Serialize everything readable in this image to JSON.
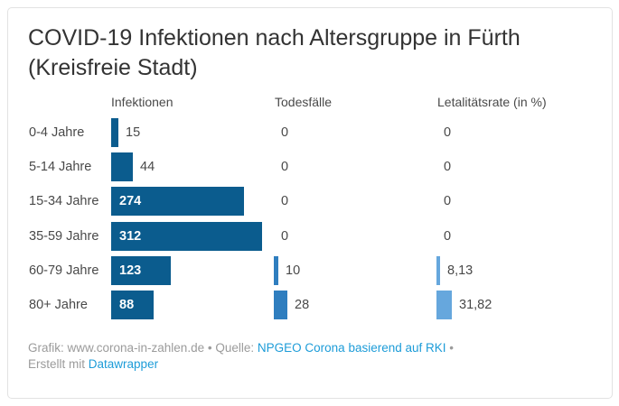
{
  "title": "COVID-19 Infektionen nach Altersgruppe in Fürth (Kreisfreie Stadt)",
  "chart_data": {
    "type": "bar",
    "subtype": "horizontal-split-bars-table",
    "title": "COVID-19 Infektionen nach Altersgruppe in Fürth (Kreisfreie Stadt)",
    "categories": [
      "0-4 Jahre",
      "5-14 Jahre",
      "15-34 Jahre",
      "35-59 Jahre",
      "60-79 Jahre",
      "80+ Jahre"
    ],
    "series": [
      {
        "name": "Infektionen",
        "values": [
          15,
          44,
          274,
          312,
          123,
          88
        ],
        "labels": [
          "15",
          "44",
          "274",
          "312",
          "123",
          "88"
        ],
        "color": "#0b5c8e"
      },
      {
        "name": "Todesfälle",
        "values": [
          0,
          0,
          0,
          0,
          10,
          28
        ],
        "labels": [
          "0",
          "0",
          "0",
          "0",
          "10",
          "28"
        ],
        "color": "#2f7ebf"
      },
      {
        "name": "Letalitätsrate (in %)",
        "values": [
          0,
          0,
          0,
          0,
          8.13,
          31.82
        ],
        "labels": [
          "0",
          "0",
          "0",
          "0",
          "8,13",
          "31,82"
        ],
        "color": "#66a7dd"
      }
    ],
    "xlabel": "",
    "ylabel": "",
    "xlim": [
      0,
      312
    ],
    "grid": false,
    "legend_position": "column-headers",
    "value_label_color_inside": "#ffffff",
    "value_label_color_outside": "#494949"
  },
  "footer": {
    "grafik_label": "Grafik: www.corona-in-zahlen.de",
    "separator": "•",
    "quelle_label": "Quelle:",
    "source_link": "NPGEO Corona basierend auf RKI",
    "erstellt_label": "Erstellt mit",
    "datawrapper_link": "Datawrapper",
    "link_color": "#1d9cd8"
  }
}
